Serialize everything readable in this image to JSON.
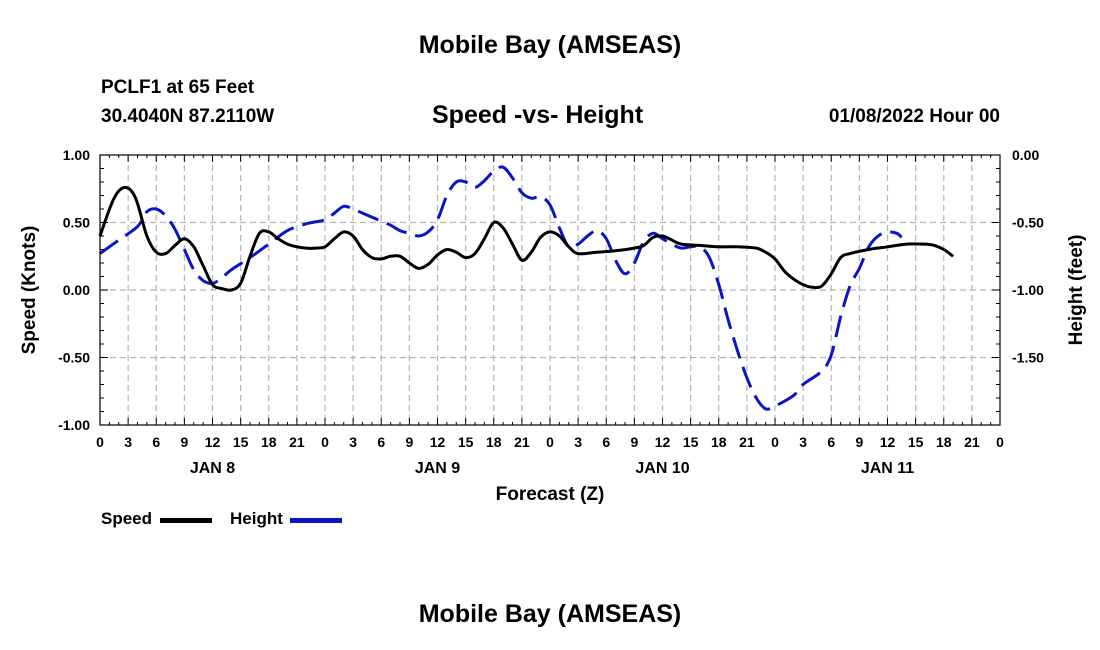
{
  "page": {
    "top_title": "Mobile Bay (AMSEAS)",
    "bottom_title": "Mobile Bay (AMSEAS)",
    "station_line1": "PCLF1 at 65 Feet",
    "station_line2": "30.4040N  87.2110W",
    "chart_title": "Speed -vs- Height",
    "date_label": "01/08/2022 Hour 00"
  },
  "legend": {
    "speed_label": "Speed",
    "height_label": "Height",
    "speed_color": "#000000",
    "height_color": "#0a14c8"
  },
  "chart_data": {
    "type": "line",
    "title": "Speed -vs- Height",
    "xlabel": "Forecast (Z)",
    "ylabel": "Speed (Knots)",
    "y2label": "Height (feet)",
    "xlim": [
      0,
      96
    ],
    "ylim": [
      -1.0,
      1.0
    ],
    "y2lim": [
      -2.0,
      0.0
    ],
    "grid": true,
    "x_tick_labels": [
      "0",
      "3",
      "6",
      "9",
      "12",
      "15",
      "18",
      "21",
      "0",
      "3",
      "6",
      "9",
      "12",
      "15",
      "18",
      "21",
      "0",
      "3",
      "6",
      "9",
      "12",
      "15",
      "18",
      "21",
      "0",
      "3",
      "6",
      "9",
      "12",
      "15",
      "18",
      "21",
      "0"
    ],
    "date_labels": [
      {
        "label": "JAN 8",
        "hour": 12
      },
      {
        "label": "JAN 9",
        "hour": 36
      },
      {
        "label": "JAN 10",
        "hour": 60
      },
      {
        "label": "JAN 11",
        "hour": 84
      }
    ],
    "y_tick_labels": [
      "1.00",
      "0.50",
      "0.00",
      "-0.50",
      "-1.00"
    ],
    "y2_tick_labels": [
      "0.00",
      "-0.50",
      "-1.00",
      "-1.50"
    ],
    "series": [
      {
        "name": "Speed",
        "axis": "left",
        "style": "solid",
        "points": [
          [
            0,
            0.4
          ],
          [
            1.5,
            0.68
          ],
          [
            2.7,
            0.76
          ],
          [
            3.8,
            0.68
          ],
          [
            5,
            0.4
          ],
          [
            6,
            0.28
          ],
          [
            7,
            0.27
          ],
          [
            8,
            0.33
          ],
          [
            9,
            0.38
          ],
          [
            10,
            0.32
          ],
          [
            11,
            0.18
          ],
          [
            12,
            0.04
          ],
          [
            13,
            0.01
          ],
          [
            14,
            0.0
          ],
          [
            15,
            0.05
          ],
          [
            16,
            0.25
          ],
          [
            17,
            0.42
          ],
          [
            18,
            0.43
          ],
          [
            19,
            0.38
          ],
          [
            20,
            0.34
          ],
          [
            21,
            0.32
          ],
          [
            22,
            0.31
          ],
          [
            23,
            0.31
          ],
          [
            24,
            0.32
          ],
          [
            25,
            0.38
          ],
          [
            26,
            0.43
          ],
          [
            27,
            0.4
          ],
          [
            28,
            0.3
          ],
          [
            29,
            0.24
          ],
          [
            30,
            0.23
          ],
          [
            31,
            0.25
          ],
          [
            32,
            0.25
          ],
          [
            33,
            0.2
          ],
          [
            34,
            0.16
          ],
          [
            35,
            0.19
          ],
          [
            36,
            0.26
          ],
          [
            37,
            0.3
          ],
          [
            38,
            0.28
          ],
          [
            39,
            0.24
          ],
          [
            40,
            0.27
          ],
          [
            41,
            0.38
          ],
          [
            42,
            0.5
          ],
          [
            43,
            0.46
          ],
          [
            44,
            0.34
          ],
          [
            45,
            0.22
          ],
          [
            46,
            0.28
          ],
          [
            47,
            0.39
          ],
          [
            48,
            0.43
          ],
          [
            49,
            0.4
          ],
          [
            50,
            0.32
          ],
          [
            51,
            0.27
          ],
          [
            53,
            0.28
          ],
          [
            55,
            0.29
          ],
          [
            57,
            0.31
          ],
          [
            58,
            0.33
          ],
          [
            59,
            0.39
          ],
          [
            60,
            0.4
          ],
          [
            61,
            0.37
          ],
          [
            62,
            0.34
          ],
          [
            64,
            0.33
          ],
          [
            66,
            0.32
          ],
          [
            68,
            0.32
          ],
          [
            70,
            0.31
          ],
          [
            71,
            0.28
          ],
          [
            72,
            0.23
          ],
          [
            73,
            0.14
          ],
          [
            74,
            0.08
          ],
          [
            75,
            0.04
          ],
          [
            76,
            0.02
          ],
          [
            77,
            0.03
          ],
          [
            78,
            0.12
          ],
          [
            79,
            0.24
          ],
          [
            80,
            0.27
          ],
          [
            82,
            0.3
          ],
          [
            84,
            0.32
          ],
          [
            86,
            0.34
          ],
          [
            88,
            0.34
          ],
          [
            89,
            0.33
          ],
          [
            90,
            0.3
          ],
          [
            91,
            0.25
          ]
        ]
      },
      {
        "name": "Height",
        "axis": "right",
        "style": "dashed",
        "points": [
          [
            0,
            -0.73
          ],
          [
            2,
            -0.63
          ],
          [
            4,
            -0.53
          ],
          [
            5,
            -0.42
          ],
          [
            6,
            -0.4
          ],
          [
            7,
            -0.45
          ],
          [
            8,
            -0.55
          ],
          [
            9,
            -0.7
          ],
          [
            10,
            -0.85
          ],
          [
            11,
            -0.93
          ],
          [
            12,
            -0.95
          ],
          [
            13,
            -0.91
          ],
          [
            14,
            -0.85
          ],
          [
            16,
            -0.76
          ],
          [
            18,
            -0.66
          ],
          [
            20,
            -0.56
          ],
          [
            22,
            -0.51
          ],
          [
            24,
            -0.48
          ],
          [
            25,
            -0.43
          ],
          [
            26,
            -0.38
          ],
          [
            27,
            -0.4
          ],
          [
            28,
            -0.43
          ],
          [
            29,
            -0.46
          ],
          [
            30,
            -0.49
          ],
          [
            31,
            -0.52
          ],
          [
            32,
            -0.56
          ],
          [
            33,
            -0.58
          ],
          [
            34,
            -0.6
          ],
          [
            35,
            -0.57
          ],
          [
            36,
            -0.48
          ],
          [
            37,
            -0.3
          ],
          [
            38,
            -0.2
          ],
          [
            39,
            -0.2
          ],
          [
            40,
            -0.24
          ],
          [
            41,
            -0.19
          ],
          [
            42,
            -0.12
          ],
          [
            43,
            -0.09
          ],
          [
            44,
            -0.17
          ],
          [
            45,
            -0.28
          ],
          [
            46,
            -0.32
          ],
          [
            47,
            -0.31
          ],
          [
            48,
            -0.37
          ],
          [
            49,
            -0.54
          ],
          [
            50,
            -0.68
          ],
          [
            51,
            -0.66
          ],
          [
            52,
            -0.6
          ],
          [
            53,
            -0.56
          ],
          [
            54,
            -0.62
          ],
          [
            55,
            -0.78
          ],
          [
            56,
            -0.88
          ],
          [
            57,
            -0.8
          ],
          [
            58,
            -0.64
          ],
          [
            59,
            -0.58
          ],
          [
            60,
            -0.62
          ],
          [
            61,
            -0.66
          ],
          [
            62,
            -0.69
          ],
          [
            63,
            -0.68
          ],
          [
            64,
            -0.68
          ],
          [
            65,
            -0.76
          ],
          [
            66,
            -0.96
          ],
          [
            67,
            -1.22
          ],
          [
            68,
            -1.45
          ],
          [
            69,
            -1.65
          ],
          [
            70,
            -1.8
          ],
          [
            71,
            -1.88
          ],
          [
            72,
            -1.86
          ],
          [
            74,
            -1.78
          ],
          [
            75,
            -1.7
          ],
          [
            77,
            -1.6
          ],
          [
            78,
            -1.48
          ],
          [
            79,
            -1.2
          ],
          [
            80,
            -0.97
          ],
          [
            81,
            -0.84
          ],
          [
            82,
            -0.68
          ],
          [
            83,
            -0.6
          ],
          [
            84,
            -0.57
          ],
          [
            85,
            -0.58
          ],
          [
            85.5,
            -0.61
          ]
        ]
      }
    ]
  }
}
